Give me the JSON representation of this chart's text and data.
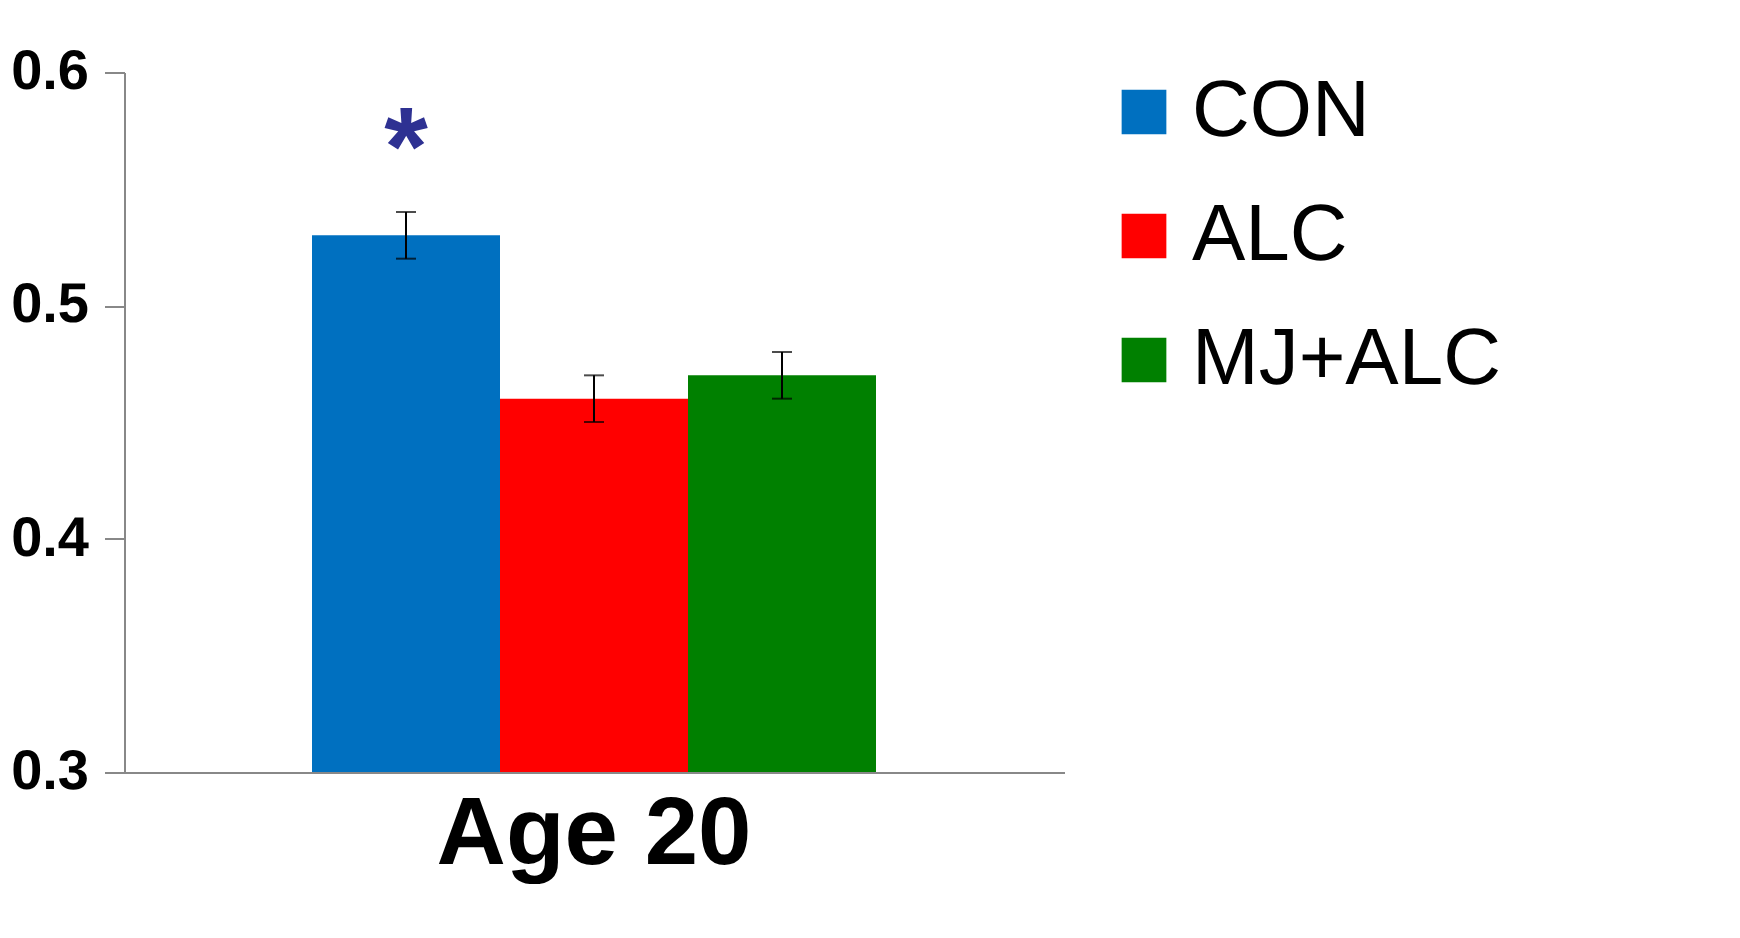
{
  "chart_data": {
    "type": "bar",
    "categories": [
      "Age 20"
    ],
    "series": [
      {
        "name": "CON",
        "color": "#0070c0",
        "values": [
          0.53
        ],
        "errors": [
          0.01
        ]
      },
      {
        "name": "ALC",
        "color": "#ff0000",
        "values": [
          0.46
        ],
        "errors": [
          0.01
        ]
      },
      {
        "name": "MJ+ALC",
        "color": "#008000",
        "values": [
          0.47
        ],
        "errors": [
          0.01
        ]
      }
    ],
    "ylim": [
      0.3,
      0.6
    ],
    "yticks": [
      0.3,
      0.4,
      0.5,
      0.6
    ],
    "grid": false,
    "legend": "right",
    "annotations": [
      "*"
    ]
  }
}
